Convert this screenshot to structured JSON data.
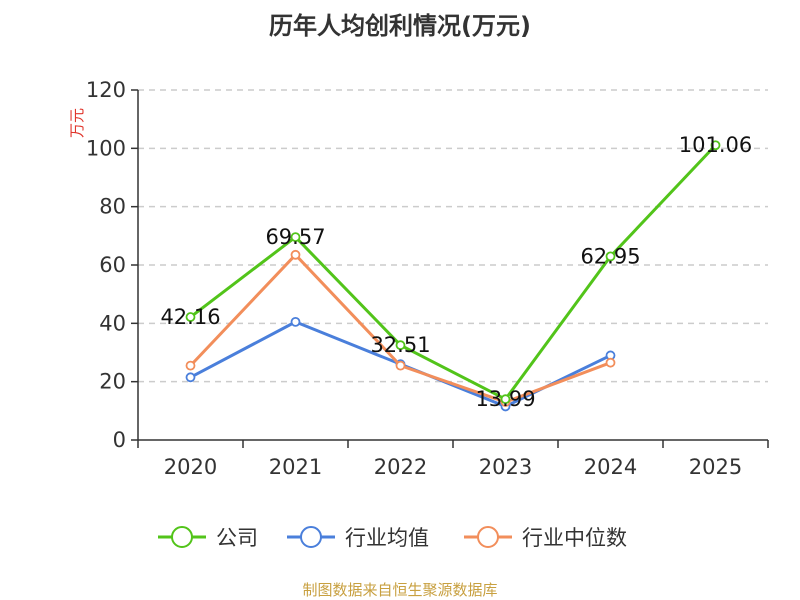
{
  "chart_data": {
    "type": "line",
    "title": "历年人均创利情况(万元)",
    "ylabel": "万元",
    "xlabel": "",
    "categories": [
      "2020",
      "2021",
      "2022",
      "2023",
      "2024",
      "2025"
    ],
    "ylim": [
      0,
      120
    ],
    "yticks": [
      0,
      20,
      40,
      60,
      80,
      100,
      120
    ],
    "grid": true,
    "legend_position": "bottom",
    "series": [
      {
        "name": "公司",
        "color": "#52c41a",
        "values": [
          42.16,
          69.57,
          32.51,
          13.99,
          62.95,
          101.06
        ],
        "labels": [
          "42.16",
          "69.57",
          "32.51",
          "13.99",
          "62.95",
          "101.06"
        ]
      },
      {
        "name": "行业均值",
        "color": "#4a7fdb",
        "values": [
          21.5,
          40.5,
          26.0,
          11.5,
          29.0,
          null
        ]
      },
      {
        "name": "行业中位数",
        "color": "#f28e5b",
        "values": [
          25.5,
          63.5,
          25.5,
          13.0,
          26.5,
          null
        ]
      }
    ],
    "source": "制图数据来自恒生聚源数据库"
  }
}
